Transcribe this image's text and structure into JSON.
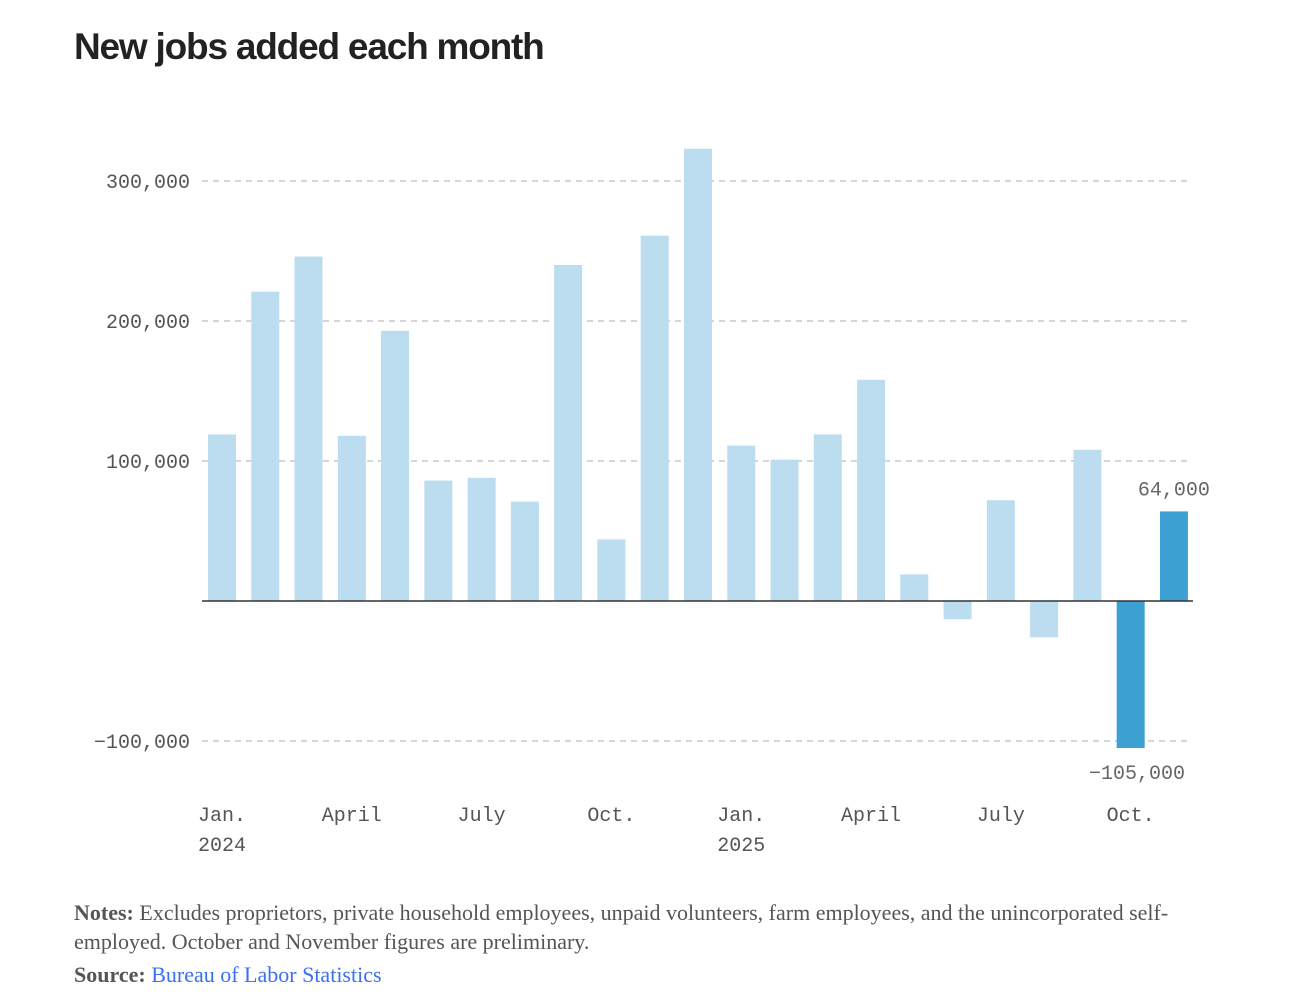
{
  "chart_data": {
    "type": "bar",
    "title": "New jobs added each month",
    "categories": [
      "Jan. 2024",
      "Feb. 2024",
      "Mar. 2024",
      "Apr. 2024",
      "May 2024",
      "Jun. 2024",
      "Jul. 2024",
      "Aug. 2024",
      "Sep. 2024",
      "Oct. 2024",
      "Nov. 2024",
      "Dec. 2024",
      "Jan. 2025",
      "Feb. 2025",
      "Mar. 2025",
      "Apr. 2025",
      "May 2025",
      "Jun. 2025",
      "Jul. 2025",
      "Aug. 2025",
      "Sep. 2025",
      "Oct. 2025",
      "Nov. 2025"
    ],
    "values": [
      119000,
      221000,
      246000,
      118000,
      193000,
      86000,
      88000,
      71000,
      240000,
      44000,
      261000,
      323000,
      111000,
      101000,
      119000,
      158000,
      19000,
      -13000,
      72000,
      -26000,
      108000,
      -105000,
      64000
    ],
    "highlighted": [
      21,
      22
    ],
    "ylim": [
      -110000,
      330000
    ],
    "y_ticks": [
      {
        "value": 300000,
        "label": "300,000"
      },
      {
        "value": 200000,
        "label": "200,000"
      },
      {
        "value": 100000,
        "label": "100,000"
      },
      {
        "value": -100000,
        "label": "−100,000"
      }
    ],
    "x_ticks": [
      {
        "index": 0,
        "label": "Jan.",
        "sub": "2024"
      },
      {
        "index": 3,
        "label": "April",
        "sub": ""
      },
      {
        "index": 6,
        "label": "July",
        "sub": ""
      },
      {
        "index": 9,
        "label": "Oct.",
        "sub": ""
      },
      {
        "index": 12,
        "label": "Jan.",
        "sub": "2025"
      },
      {
        "index": 15,
        "label": "April",
        "sub": ""
      },
      {
        "index": 18,
        "label": "July",
        "sub": ""
      },
      {
        "index": 21,
        "label": "Oct.",
        "sub": ""
      }
    ],
    "data_labels": [
      {
        "index": 22,
        "label": "64,000"
      },
      {
        "index": 21,
        "label": "−105,000"
      }
    ],
    "grid": true,
    "colors": {
      "bar": "#bcdcef",
      "highlight": "#3da0d2",
      "grid": "#c8c8c8",
      "zero": "#333333"
    }
  },
  "notes": {
    "label": "Notes:",
    "text": " Excludes proprietors, private household employees, unpaid volunteers, farm employees, and the unincorporated self-employed. October and November figures are preliminary."
  },
  "source": {
    "label": "Source:",
    "link": "Bureau of Labor Statistics"
  }
}
